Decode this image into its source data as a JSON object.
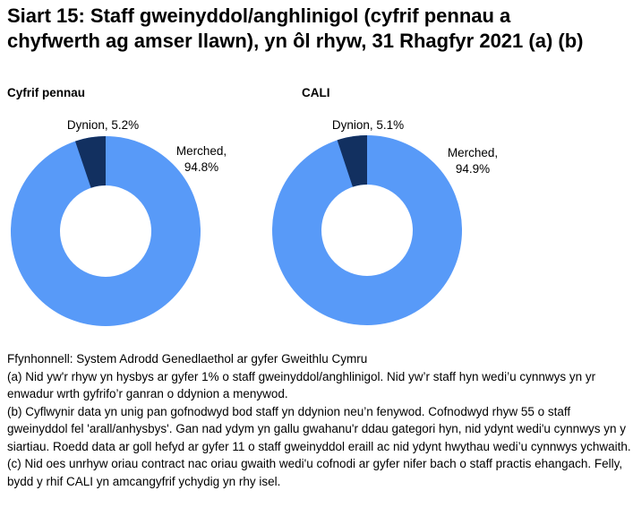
{
  "title": "Siart 15: Staff gweinyddol/anghlinigol (cyfrif pennau a chyfwerth ag amser llawn), yn ôl rhyw, 31 Rhagfyr 2021 (a) (b)",
  "charts": [
    {
      "subtitle": "Cyfrif pennau",
      "labels": {
        "dynion": "Dynion, 5.2%",
        "merched_line1": "Merched,",
        "merched_line2": "94.8%"
      }
    },
    {
      "subtitle": "CALI",
      "labels": {
        "dynion": "Dynion, 5.1%",
        "merched_line1": "Merched,",
        "merched_line2": "94.9%"
      }
    }
  ],
  "chart_data": [
    {
      "type": "pie",
      "subtype": "donut",
      "title": "Cyfrif pennau",
      "categories": [
        "Merched",
        "Dynion"
      ],
      "values": [
        94.8,
        5.2
      ],
      "unit": "%",
      "segment_colors": [
        "#589AF8",
        "#123060"
      ],
      "data_labels": [
        "Merched, 94.8%",
        "Dynion, 5.2%"
      ],
      "hole_ratio": 0.48,
      "start_angle_deg": 0,
      "direction": "clockwise",
      "legend": "none"
    },
    {
      "type": "pie",
      "subtype": "donut",
      "title": "CALI",
      "categories": [
        "Merched",
        "Dynion"
      ],
      "values": [
        94.9,
        5.1
      ],
      "unit": "%",
      "segment_colors": [
        "#589AF8",
        "#123060"
      ],
      "data_labels": [
        "Merched, 94.9%",
        "Dynion, 5.1%"
      ],
      "hole_ratio": 0.48,
      "start_angle_deg": 0,
      "direction": "clockwise",
      "legend": "none"
    }
  ],
  "footnotes": {
    "source": "Ffynhonnell: System Adrodd Genedlaethol ar gyfer Gweithlu Cymru",
    "note_a": "(a) Nid yw'r rhyw yn hysbys ar gyfer 1% o staff gweinyddol/anghlinigol. Nid yw’r staff hyn wedi’u cynnwys yn yr enwadur wrth gyfrifo’r ganran o ddynion a menywod.",
    "note_b": "(b) Cyflwynir data yn unig pan gofnodwyd bod staff yn ddynion neu’n fenywod. Cofnodwyd rhyw 55 o staff gweinyddol fel 'arall/anhysbys'. Gan nad ydym yn gallu gwahanu'r ddau gategori hyn, nid ydynt wedi'u cynnwys yn y siartiau. Roedd data ar goll hefyd ar gyfer 11 o staff gweinyddol eraill ac nid ydynt hwythau wedi’u cynnwys ychwaith.",
    "note_c": "(c) Nid oes unrhyw oriau contract nac oriau gwaith wedi'u cofnodi ar gyfer nifer bach o staff practis ehangach. Felly, bydd y rhif CALI yn amcangyfrif ychydig yn rhy isel."
  },
  "colors": {
    "merched_blue": "#589AF8",
    "dynion_navy": "#123060",
    "text": "#000000",
    "background": "#ffffff"
  }
}
